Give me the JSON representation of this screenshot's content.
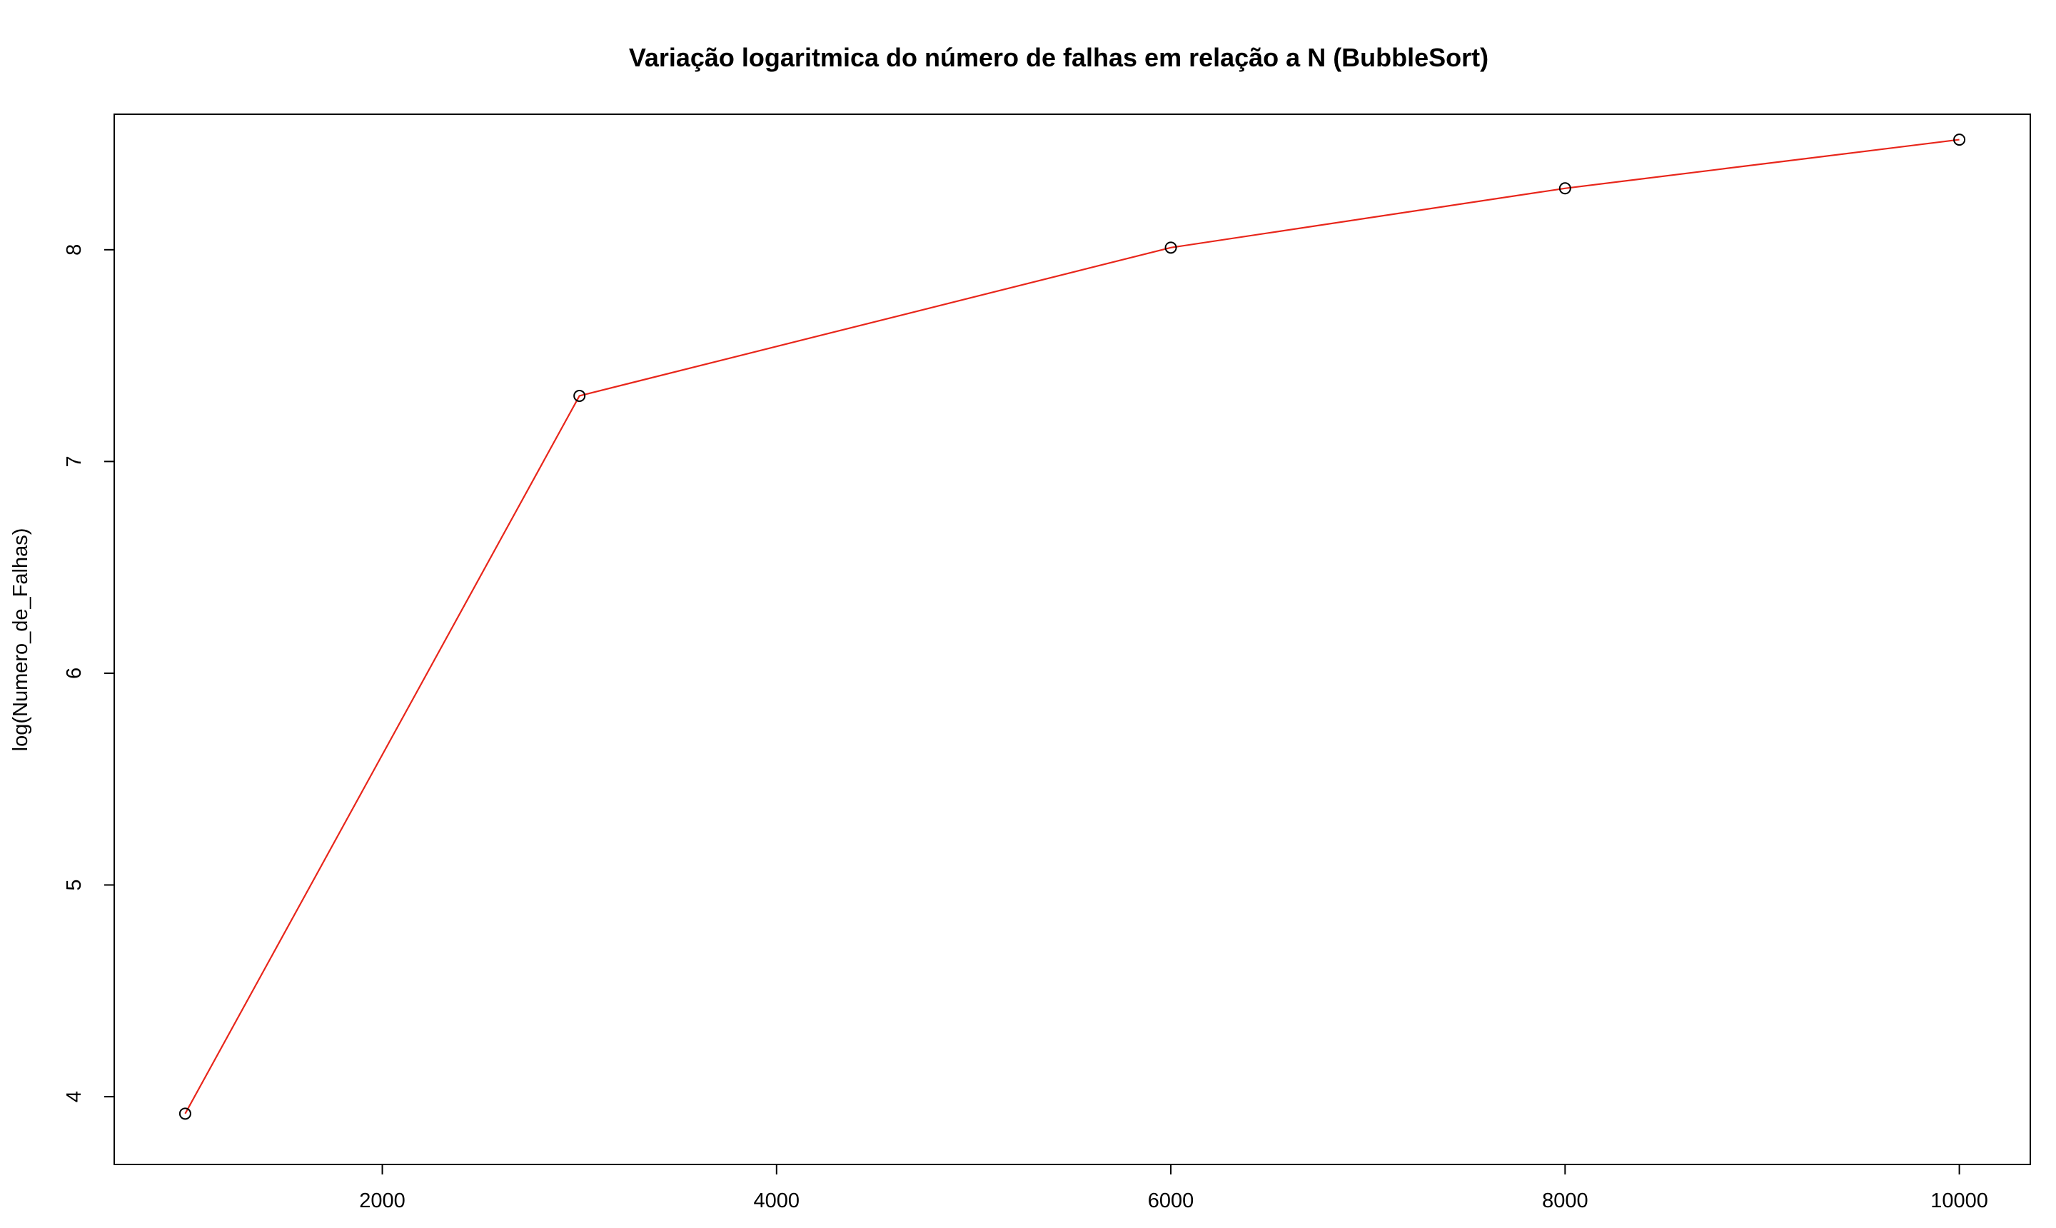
{
  "chart_data": {
    "type": "line",
    "title": "Variação logaritmica do número de falhas em relação a N (BubbleSort)",
    "xlabel": "",
    "ylabel": "log(Numero_de_Falhas)",
    "xlim": [
      640,
      10360
    ],
    "ylim": [
      3.68,
      8.64
    ],
    "x_ticks": [
      2000,
      4000,
      6000,
      8000,
      10000
    ],
    "x_tick_labels": [
      "2000",
      "4000",
      "6000",
      "8000",
      "10000"
    ],
    "y_ticks": [
      4,
      5,
      6,
      7,
      8
    ],
    "y_tick_labels": [
      "4",
      "5",
      "6",
      "7",
      "8"
    ],
    "grid": false,
    "legend": "none",
    "series": [
      {
        "x": [
          1000,
          3000,
          6000,
          8000,
          10000
        ],
        "values": [
          3.92,
          7.31,
          8.01,
          8.29,
          8.52
        ],
        "line_color": "#e8261b",
        "marker": "open-circle",
        "marker_color": "#000000"
      }
    ]
  }
}
